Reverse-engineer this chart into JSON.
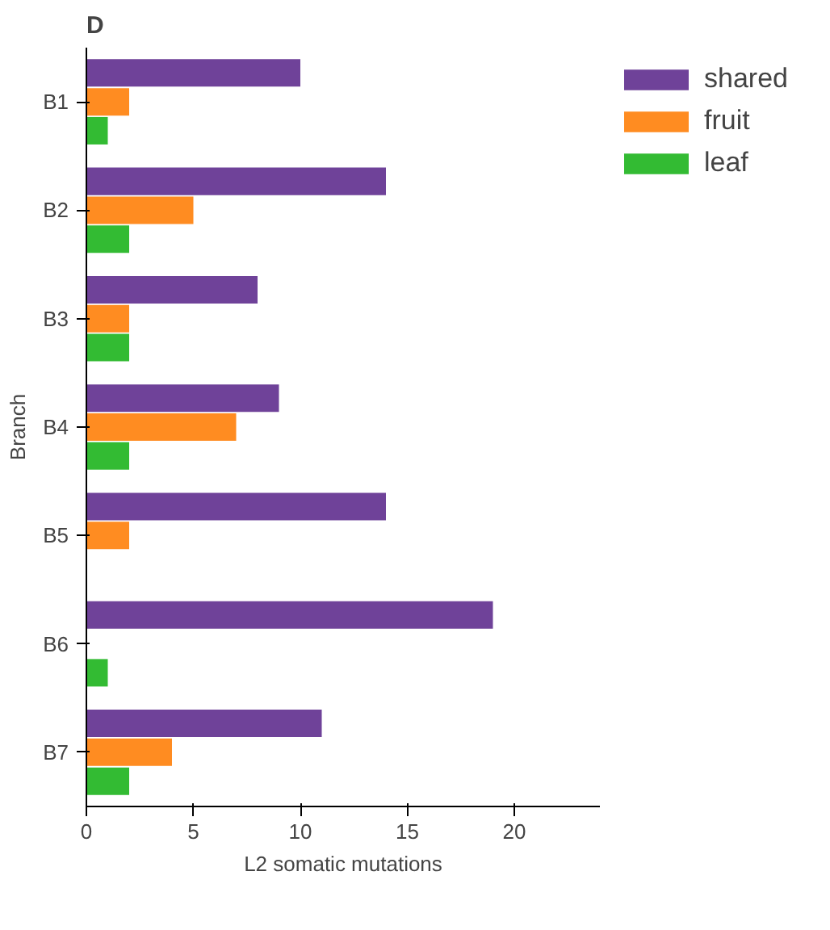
{
  "chart_data": {
    "type": "bar",
    "orientation": "horizontal",
    "title": "D",
    "xlabel": "L2 somatic mutations",
    "ylabel": "Branch",
    "categories": [
      "B1",
      "B2",
      "B3",
      "B4",
      "B5",
      "B6",
      "B7"
    ],
    "series": [
      {
        "name": "shared",
        "color": "#6f4299",
        "values": [
          10,
          14,
          8,
          9,
          14,
          19,
          11
        ]
      },
      {
        "name": "fruit",
        "color": "#ff8c21",
        "values": [
          2,
          5,
          2,
          7,
          2,
          0,
          4
        ]
      },
      {
        "name": "leaf",
        "color": "#33bb33",
        "values": [
          1,
          2,
          2,
          2,
          0,
          1,
          2
        ]
      }
    ],
    "xlim": [
      0,
      24
    ],
    "xticks": [
      0,
      5,
      10,
      15,
      20
    ],
    "grid": false,
    "legend": "top right"
  }
}
